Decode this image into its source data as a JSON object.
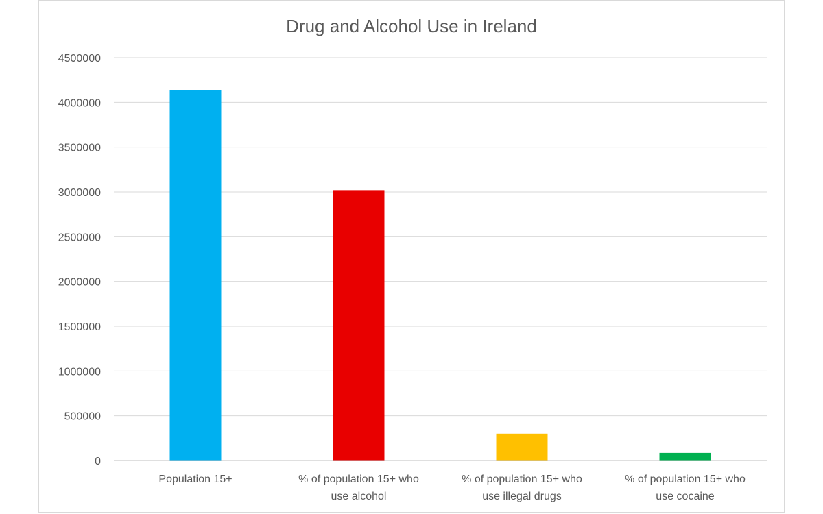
{
  "chart_data": {
    "type": "bar",
    "title": "Drug and Alcohol Use in Ireland",
    "xlabel": "",
    "ylabel": "",
    "ylim": [
      0,
      4500000
    ],
    "yticks": [
      "0",
      "500000",
      "1000000",
      "1500000",
      "2000000",
      "2500000",
      "3000000",
      "3500000",
      "4000000",
      "4500000"
    ],
    "grid": true,
    "legend": "none",
    "categories": [
      [
        "Population 15+"
      ],
      [
        "% of population 15+ who",
        "use alcohol"
      ],
      [
        "% of population 15+ who",
        "use illegal drugs"
      ],
      [
        "% of population 15+ who",
        "use cocaine"
      ]
    ],
    "values": [
      4137000,
      3020000,
      300000,
      85000
    ],
    "colors": [
      "#00B0F0",
      "#E80000",
      "#FFC000",
      "#00B050"
    ]
  },
  "style": {
    "gridline_color": "#d9d9d9",
    "axis_color": "#bfbfbf",
    "text_color": "#595959"
  }
}
